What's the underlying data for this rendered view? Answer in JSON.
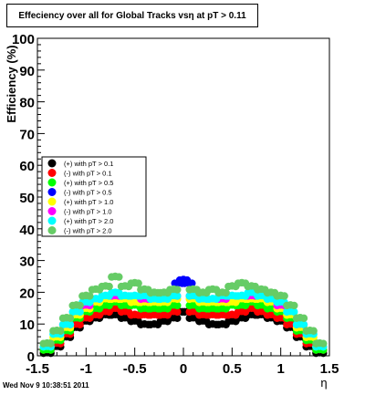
{
  "chart_data": {
    "type": "scatter",
    "title": "Effeciency over all for Global Tracks vsη at pT > 0.11",
    "xlabel": "η",
    "ylabel": "Efficiency (%)",
    "xlim": [
      -1.5,
      1.5
    ],
    "ylim": [
      0,
      100
    ],
    "x_ticks": [
      "-1.5",
      "-1",
      "-0.5",
      "0",
      "0.5",
      "1",
      "1.5"
    ],
    "y_ticks": [
      "0",
      "10",
      "20",
      "30",
      "40",
      "50",
      "60",
      "70",
      "80",
      "90",
      "100"
    ],
    "grid": false,
    "legend_position": "left-center",
    "series": [
      {
        "name": "(+) with pT > 0.1",
        "color": "#000000",
        "x": [
          -1.4,
          -1.3,
          -1.2,
          -1.1,
          -1.0,
          -0.9,
          -0.8,
          -0.7,
          -0.6,
          -0.5,
          -0.4,
          -0.3,
          -0.2,
          -0.1,
          -0.05,
          0.05,
          0.1,
          0.2,
          0.3,
          0.4,
          0.5,
          0.6,
          0.7,
          0.8,
          0.9,
          1.0,
          1.1,
          1.2,
          1.3,
          1.4
        ],
        "y": [
          1,
          3,
          6,
          9,
          11,
          12,
          13,
          13,
          12,
          11,
          10,
          10,
          11,
          12,
          14,
          14,
          12,
          11,
          10,
          10,
          11,
          12,
          13,
          13,
          12,
          11,
          9,
          6,
          3,
          1
        ]
      },
      {
        "name": "(-) with pT > 0.1",
        "color": "#ff0000",
        "x": [
          -1.4,
          -1.3,
          -1.2,
          -1.1,
          -1.0,
          -0.9,
          -0.8,
          -0.7,
          -0.6,
          -0.5,
          -0.4,
          -0.3,
          -0.2,
          -0.1,
          0.1,
          0.2,
          0.3,
          0.4,
          0.5,
          0.6,
          0.7,
          0.8,
          0.9,
          1.0,
          1.1,
          1.2,
          1.3,
          1.4
        ],
        "y": [
          2,
          4,
          7,
          10,
          12,
          13,
          14,
          15,
          14,
          13,
          13,
          13,
          13,
          14,
          14,
          13,
          13,
          13,
          13,
          14,
          15,
          14,
          13,
          12,
          10,
          7,
          4,
          2
        ]
      },
      {
        "name": "(+) with pT > 0.5",
        "color": "#00ff00",
        "x": [
          -1.4,
          -1.3,
          -1.2,
          -1.1,
          -1.0,
          -0.9,
          -0.8,
          -0.7,
          -0.6,
          -0.5,
          -0.4,
          -0.3,
          -0.2,
          -0.1,
          0.1,
          0.2,
          0.3,
          0.4,
          0.5,
          0.6,
          0.7,
          0.8,
          0.9,
          1.0,
          1.1,
          1.2,
          1.3,
          1.4
        ],
        "y": [
          2,
          5,
          8,
          12,
          14,
          15,
          16,
          17,
          16,
          16,
          15,
          15,
          15,
          16,
          16,
          15,
          15,
          15,
          16,
          16,
          17,
          16,
          15,
          14,
          12,
          8,
          5,
          2
        ]
      },
      {
        "name": "(-) with pT > 0.5",
        "color": "#0000ff",
        "x": [
          -0.05,
          0.0,
          0.05
        ],
        "y": [
          23,
          24,
          23
        ]
      },
      {
        "name": "(+) with pT > 1.0",
        "color": "#ffff00",
        "x": [
          -1.4,
          -1.3,
          -1.2,
          -1.1,
          -1.0,
          -0.9,
          -0.8,
          -0.7,
          -0.6,
          -0.5,
          -0.4,
          -0.3,
          -0.2,
          -0.1,
          0.1,
          0.2,
          0.3,
          0.4,
          0.5,
          0.6,
          0.7,
          0.8,
          0.9,
          1.0,
          1.1,
          1.2,
          1.3,
          1.4
        ],
        "y": [
          3,
          6,
          9,
          13,
          15,
          17,
          18,
          18,
          18,
          17,
          17,
          17,
          17,
          18,
          18,
          17,
          17,
          17,
          17,
          18,
          18,
          18,
          17,
          15,
          13,
          9,
          6,
          3
        ]
      },
      {
        "name": "(-) with pT > 1.0",
        "color": "#ff00ff",
        "x": [
          -1.2,
          -1.0,
          -0.7,
          -0.4,
          -0.1,
          0.1,
          0.4,
          0.7,
          1.0,
          1.2
        ],
        "y": [
          10,
          16,
          19,
          18,
          19,
          19,
          18,
          19,
          16,
          10
        ]
      },
      {
        "name": "(+) with pT > 2.0",
        "color": "#00ffff",
        "x": [
          -1.4,
          -1.3,
          -1.2,
          -1.1,
          -1.0,
          -0.9,
          -0.8,
          -0.7,
          -0.6,
          -0.5,
          -0.4,
          -0.3,
          -0.2,
          -0.1,
          0.1,
          0.2,
          0.3,
          0.4,
          0.5,
          0.6,
          0.7,
          0.8,
          0.9,
          1.0,
          1.1,
          1.2,
          1.3,
          1.4
        ],
        "y": [
          3,
          7,
          10,
          14,
          17,
          18,
          19,
          20,
          19,
          19,
          19,
          18,
          18,
          19,
          19,
          18,
          18,
          19,
          19,
          19,
          20,
          19,
          18,
          17,
          14,
          10,
          7,
          3
        ]
      },
      {
        "name": "(-) with pT > 2.0",
        "color": "#66cc66",
        "x": [
          -1.4,
          -1.3,
          -1.2,
          -1.1,
          -1.0,
          -0.9,
          -0.8,
          -0.7,
          -0.6,
          -0.5,
          -0.4,
          -0.3,
          -0.2,
          -0.1,
          0.1,
          0.2,
          0.3,
          0.4,
          0.5,
          0.6,
          0.7,
          0.8,
          0.9,
          1.0,
          1.1,
          1.2,
          1.3,
          1.4
        ],
        "y": [
          4,
          8,
          12,
          16,
          19,
          21,
          22,
          25,
          22,
          23,
          21,
          20,
          20,
          21,
          21,
          20,
          21,
          20,
          22,
          23,
          22,
          21,
          20,
          19,
          16,
          12,
          8,
          4
        ]
      }
    ]
  },
  "footer": {
    "timestamp": "Wed Nov  9 10:38:51 2011"
  }
}
